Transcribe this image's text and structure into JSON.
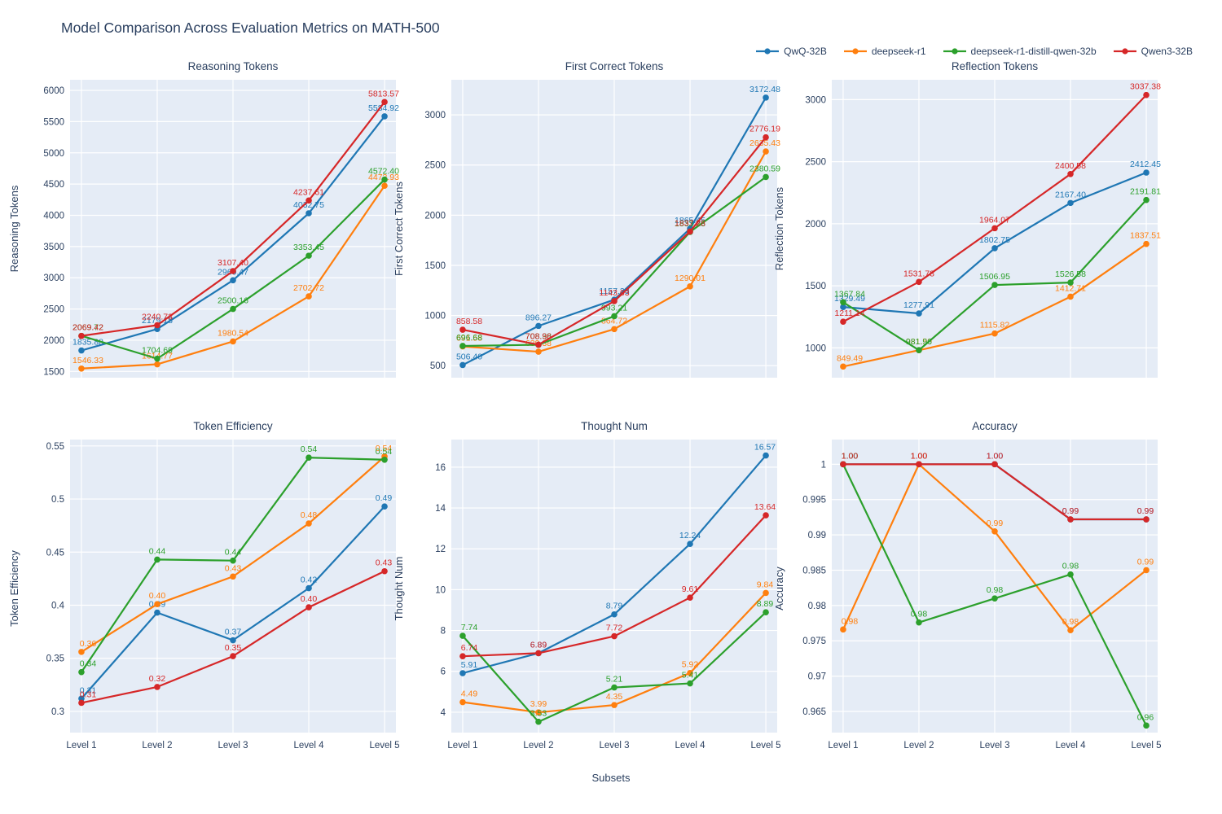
{
  "title": "Model Comparison Across Evaluation Metrics on MATH-500",
  "xlabel": "Subsets",
  "categories": [
    "Level 1",
    "Level 2",
    "Level 3",
    "Level 4",
    "Level 5"
  ],
  "colors": {
    "qwq": "#1f77b4",
    "deepseek_r1": "#ff7f0e",
    "distill": "#2ca02c",
    "qwen3": "#d62728",
    "panel_bg": "#e5ecf6",
    "grid": "#ffffff",
    "text": "#2a3f5f"
  },
  "legend": [
    {
      "label": "QwQ-32B",
      "color": "#1f77b4"
    },
    {
      "label": "deepseek-r1",
      "color": "#ff7f0e"
    },
    {
      "label": "deepseek-r1-distill-qwen-32b",
      "color": "#2ca02c"
    },
    {
      "label": "Qwen3-32B",
      "color": "#d62728"
    }
  ],
  "chart_data": [
    {
      "type": "line",
      "title": "Reasoning Tokens",
      "ylabel": "Reasoning Tokens",
      "categories": [
        "Level 1",
        "Level 2",
        "Level 3",
        "Level 4",
        "Level 5"
      ],
      "ylim": [
        1400,
        6170
      ],
      "yticks": [
        1500,
        2000,
        2500,
        3000,
        3500,
        4000,
        4500,
        5000,
        5500,
        6000
      ],
      "ytick_labels": [
        "1500",
        "2000",
        "2500",
        "3000",
        "3500",
        "4000",
        "4500",
        "5000",
        "5500",
        "6000"
      ],
      "show_x_ticks": false,
      "series": [
        {
          "name": "QwQ-32B",
          "color": "#1f77b4",
          "values": [
            1835.88,
            2179.18,
            2960.47,
            4032.75,
            5584.92
          ],
          "labels": [
            "1835.88",
            "2179.18",
            "2960.47",
            "4032.75",
            "5584.92"
          ]
        },
        {
          "name": "deepseek-r1",
          "color": "#ff7f0e",
          "values": [
            1546.33,
            1614.77,
            1980.54,
            2702.72,
            4472.93
          ],
          "labels": [
            "1546.33",
            "1614.77",
            "1980.54",
            "2702.72",
            "4472.93"
          ]
        },
        {
          "name": "deepseek-r1-distill-qwen-32b",
          "color": "#2ca02c",
          "values": [
            2069.72,
            1704.69,
            2500.16,
            3353.45,
            4572.4
          ],
          "labels": [
            "2069.72",
            "1704.69",
            "2500.16",
            "3353.45",
            "4572.40"
          ]
        },
        {
          "name": "Qwen3-32B",
          "color": "#d62728",
          "values": [
            2069.42,
            2240.73,
            3107.4,
            4237.61,
            5813.57
          ],
          "labels": [
            "2069.42",
            "2240.73",
            "3107.40",
            "4237.61",
            "5813.57"
          ]
        }
      ]
    },
    {
      "type": "line",
      "title": "First Correct Tokens",
      "ylabel": "First Correct Tokens",
      "categories": [
        "Level 1",
        "Level 2",
        "Level 3",
        "Level 4",
        "Level 5"
      ],
      "ylim": [
        380,
        3350
      ],
      "yticks": [
        500,
        1000,
        1500,
        2000,
        2500,
        3000
      ],
      "ytick_labels": [
        "500",
        "1000",
        "1500",
        "2000",
        "2500",
        "3000"
      ],
      "show_x_ticks": false,
      "series": [
        {
          "name": "QwQ-32B",
          "color": "#1f77b4",
          "values": [
            506.4,
            896.27,
            1157.33,
            1865.45,
            3172.48
          ],
          "labels": [
            "506.40",
            "896.27",
            "1157.33",
            "1865.45",
            "3172.48"
          ]
        },
        {
          "name": "deepseek-r1",
          "color": "#ff7f0e",
          "values": [
            691.58,
            639.38,
            864.72,
            1290.01,
            2635.43
          ],
          "labels": [
            "691.58",
            "639.38",
            "864.72",
            "1290.01",
            "2635.43"
          ]
        },
        {
          "name": "deepseek-r1-distill-qwen-32b",
          "color": "#2ca02c",
          "values": [
            696.68,
            708.38,
            993.21,
            1833.23,
            2380.59
          ],
          "labels": [
            "696.68",
            "708.38",
            "993.21",
            "1833.23",
            "2380.59"
          ]
        },
        {
          "name": "Qwen3-32B",
          "color": "#d62728",
          "values": [
            858.58,
            708.96,
            1143.63,
            1837.28,
            2776.19
          ],
          "labels": [
            "858.58",
            "708.96",
            "1143.63",
            "1837.28",
            "2776.19"
          ]
        }
      ]
    },
    {
      "type": "line",
      "title": "Reflection Tokens",
      "ylabel": "Reflection Tokens",
      "categories": [
        "Level 1",
        "Level 2",
        "Level 3",
        "Level 4",
        "Level 5"
      ],
      "ylim": [
        760,
        3160
      ],
      "yticks": [
        1000,
        1500,
        2000,
        2500,
        3000
      ],
      "ytick_labels": [
        "1000",
        "1500",
        "2000",
        "2500",
        "3000"
      ],
      "show_x_ticks": false,
      "series": [
        {
          "name": "QwQ-32B",
          "color": "#1f77b4",
          "values": [
            1329.49,
            1277.91,
            1802.75,
            2167.4,
            2412.45
          ],
          "labels": [
            "1329.49",
            "1277.91",
            "1802.75",
            "2167.40",
            "2412.45"
          ]
        },
        {
          "name": "deepseek-r1",
          "color": "#ff7f0e",
          "values": [
            849.49,
            981.5,
            1115.82,
            1412.71,
            1837.51
          ],
          "labels": [
            "849.49",
            "981.50",
            "1115.82",
            "1412.71",
            "1837.51"
          ]
        },
        {
          "name": "deepseek-r1-distill-qwen-32b",
          "color": "#2ca02c",
          "values": [
            1367.84,
            981.96,
            1506.95,
            1526.58,
            2191.81
          ],
          "labels": [
            "1367.84",
            "981.96",
            "1506.95",
            "1526.58",
            "2191.81"
          ]
        },
        {
          "name": "Qwen3-32B",
          "color": "#d62728",
          "values": [
            1211.14,
            1531.78,
            1964.07,
            2400.58,
            3037.38
          ],
          "labels": [
            "1211.14",
            "1531.78",
            "1964.07",
            "2400.58",
            "3037.38"
          ]
        }
      ]
    },
    {
      "type": "line",
      "title": "Token Efficiency",
      "ylabel": "Token Efficiency",
      "categories": [
        "Level 1",
        "Level 2",
        "Level 3",
        "Level 4",
        "Level 5"
      ],
      "ylim": [
        0.28,
        0.556
      ],
      "yticks": [
        0.3,
        0.35,
        0.4,
        0.45,
        0.5,
        0.55
      ],
      "ytick_labels": [
        "0.3",
        "0.35",
        "0.4",
        "0.45",
        "0.5",
        "0.55"
      ],
      "show_x_ticks": true,
      "series": [
        {
          "name": "QwQ-32B",
          "color": "#1f77b4",
          "values": [
            0.312,
            0.393,
            0.367,
            0.416,
            0.493
          ],
          "labels": [
            "0.31",
            "0.39",
            "0.37",
            "0.42",
            "0.49"
          ]
        },
        {
          "name": "deepseek-r1",
          "color": "#ff7f0e",
          "values": [
            0.356,
            0.401,
            0.427,
            0.477,
            0.54
          ],
          "labels": [
            "0.36",
            "0.40",
            "0.43",
            "0.48",
            "0.54"
          ]
        },
        {
          "name": "deepseek-r1-distill-qwen-32b",
          "color": "#2ca02c",
          "values": [
            0.337,
            0.443,
            0.442,
            0.539,
            0.537
          ],
          "labels": [
            "0.34",
            "0.44",
            "0.44",
            "0.54",
            "0.54"
          ]
        },
        {
          "name": "Qwen3-32B",
          "color": "#d62728",
          "values": [
            0.308,
            0.323,
            0.352,
            0.398,
            0.432
          ],
          "labels": [
            "0.31",
            "0.32",
            "0.35",
            "0.40",
            "0.43"
          ]
        }
      ]
    },
    {
      "type": "line",
      "title": "Thought Num",
      "ylabel": "Thought Num",
      "categories": [
        "Level 1",
        "Level 2",
        "Level 3",
        "Level 4",
        "Level 5"
      ],
      "ylim": [
        3.0,
        17.35
      ],
      "yticks": [
        4,
        6,
        8,
        10,
        12,
        14,
        16
      ],
      "ytick_labels": [
        "4",
        "6",
        "8",
        "10",
        "12",
        "14",
        "16"
      ],
      "show_x_ticks": true,
      "series": [
        {
          "name": "QwQ-32B",
          "color": "#1f77b4",
          "values": [
            5.91,
            6.89,
            8.79,
            12.24,
            16.57
          ],
          "labels": [
            "5.91",
            "6.89",
            "8.79",
            "12.24",
            "16.57"
          ]
        },
        {
          "name": "deepseek-r1",
          "color": "#ff7f0e",
          "values": [
            4.49,
            3.99,
            4.35,
            5.92,
            9.84
          ],
          "labels": [
            "4.49",
            "3.99",
            "4.35",
            "5.92",
            "9.84"
          ]
        },
        {
          "name": "deepseek-r1-distill-qwen-32b",
          "color": "#2ca02c",
          "values": [
            7.74,
            3.53,
            5.21,
            5.41,
            8.89
          ],
          "labels": [
            "7.74",
            "3.53",
            "5.21",
            "5.41",
            "8.89"
          ]
        },
        {
          "name": "Qwen3-32B",
          "color": "#d62728",
          "values": [
            6.74,
            6.89,
            7.72,
            9.61,
            13.64
          ],
          "labels": [
            "6.74",
            "6.89",
            "7.72",
            "9.61",
            "13.64"
          ]
        }
      ]
    },
    {
      "type": "line",
      "title": "Accuracy",
      "ylabel": "Accuracy",
      "categories": [
        "Level 1",
        "Level 2",
        "Level 3",
        "Level 4",
        "Level 5"
      ],
      "ylim": [
        0.962,
        1.0035
      ],
      "yticks": [
        0.965,
        0.97,
        0.975,
        0.98,
        0.985,
        0.99,
        0.995,
        1
      ],
      "ytick_labels": [
        "0.965",
        "0.97",
        "0.975",
        "0.98",
        "0.985",
        "0.99",
        "0.995",
        "1"
      ],
      "show_x_ticks": true,
      "series": [
        {
          "name": "QwQ-32B",
          "color": "#1f77b4",
          "values": [
            1.0,
            1.0,
            1.0,
            0.9922,
            0.9922
          ],
          "labels": [
            "1.00",
            "1.00",
            "1.00",
            "0.99",
            "0.99"
          ]
        },
        {
          "name": "deepseek-r1",
          "color": "#ff7f0e",
          "values": [
            0.9766,
            1.0,
            0.9905,
            0.9765,
            0.985
          ],
          "labels": [
            "0.98",
            "1.00",
            "0.99",
            "0.98",
            "0.99"
          ]
        },
        {
          "name": "deepseek-r1-distill-qwen-32b",
          "color": "#2ca02c",
          "values": [
            1.0,
            0.9776,
            0.981,
            0.9844,
            0.963
          ],
          "labels": [
            "1.00",
            "0.98",
            "0.98",
            "0.98",
            "0.96"
          ]
        },
        {
          "name": "Qwen3-32B",
          "color": "#d62728",
          "values": [
            1.0,
            1.0,
            1.0,
            0.9922,
            0.9922
          ],
          "labels": [
            "1.00",
            "1.00",
            "1.00",
            "0.99",
            "0.99"
          ]
        }
      ]
    }
  ]
}
